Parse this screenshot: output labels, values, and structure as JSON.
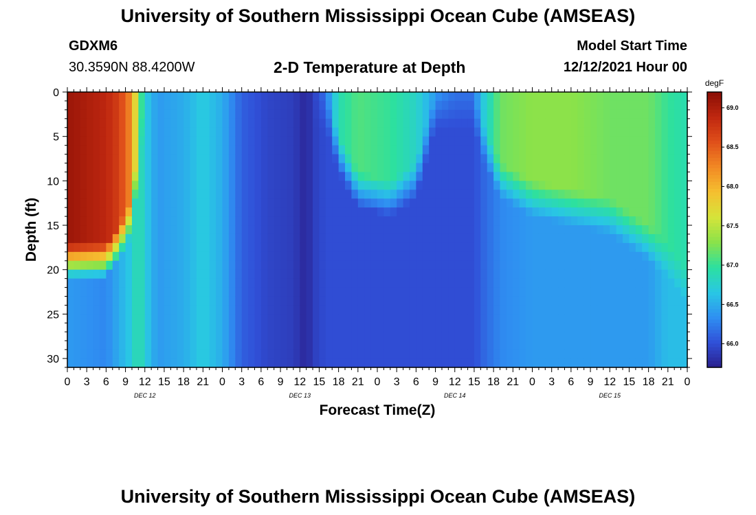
{
  "header": {
    "title": "University of Southern Mississippi Ocean Cube (AMSEAS)",
    "station_id": "GDXM6",
    "coords": "30.3590N  88.4200W",
    "subtitle": "2-D Temperature at Depth",
    "start_label": "Model Start Time",
    "start_value": "12/12/2021 Hour 00"
  },
  "footer": {
    "title": "University of Southern Mississippi Ocean Cube (AMSEAS)"
  },
  "chart_data": {
    "type": "heatmap",
    "title": "2-D Temperature at Depth",
    "xlabel": "Forecast Time(Z)",
    "ylabel": "Depth (ft)",
    "x_range_hours": [
      0,
      96
    ],
    "y_range_ft": [
      0,
      31
    ],
    "x_ticks": [
      {
        "hour": 0,
        "label": "0"
      },
      {
        "hour": 3,
        "label": "3"
      },
      {
        "hour": 6,
        "label": "6"
      },
      {
        "hour": 9,
        "label": "9"
      },
      {
        "hour": 12,
        "label": "12"
      },
      {
        "hour": 15,
        "label": "15"
      },
      {
        "hour": 18,
        "label": "18"
      },
      {
        "hour": 21,
        "label": "21"
      },
      {
        "hour": 24,
        "label": "0"
      },
      {
        "hour": 27,
        "label": "3"
      },
      {
        "hour": 30,
        "label": "6"
      },
      {
        "hour": 33,
        "label": "9"
      },
      {
        "hour": 36,
        "label": "12"
      },
      {
        "hour": 39,
        "label": "15"
      },
      {
        "hour": 42,
        "label": "18"
      },
      {
        "hour": 45,
        "label": "21"
      },
      {
        "hour": 48,
        "label": "0"
      },
      {
        "hour": 51,
        "label": "3"
      },
      {
        "hour": 54,
        "label": "6"
      },
      {
        "hour": 57,
        "label": "9"
      },
      {
        "hour": 60,
        "label": "12"
      },
      {
        "hour": 63,
        "label": "15"
      },
      {
        "hour": 66,
        "label": "18"
      },
      {
        "hour": 69,
        "label": "21"
      },
      {
        "hour": 72,
        "label": "0"
      },
      {
        "hour": 75,
        "label": "3"
      },
      {
        "hour": 78,
        "label": "6"
      },
      {
        "hour": 81,
        "label": "9"
      },
      {
        "hour": 84,
        "label": "12"
      },
      {
        "hour": 87,
        "label": "15"
      },
      {
        "hour": 90,
        "label": "18"
      },
      {
        "hour": 93,
        "label": "21"
      },
      {
        "hour": 96,
        "label": "0"
      }
    ],
    "date_labels": [
      {
        "hour": 12,
        "label": "DEC 12"
      },
      {
        "hour": 36,
        "label": "DEC 13"
      },
      {
        "hour": 60,
        "label": "DEC 14"
      },
      {
        "hour": 84,
        "label": "DEC 15"
      }
    ],
    "y_ticks": [
      0,
      5,
      10,
      15,
      20,
      25,
      30
    ],
    "colorbar": {
      "unit": "degF",
      "range": [
        65.7,
        69.2
      ],
      "ticks": [
        66.0,
        66.5,
        67.0,
        67.5,
        68.0,
        68.5,
        69.0
      ],
      "tick_labels": [
        "66.0",
        "66.5",
        "67.0",
        "67.5",
        "68.0",
        "68.5",
        "69.0"
      ],
      "colors": [
        "#2a1f8c",
        "#3050d8",
        "#2f8ff2",
        "#29c7e4",
        "#2ce0a0",
        "#8ae24a",
        "#d5e43a",
        "#f5c030",
        "#f28a24",
        "#e0501a",
        "#c02810",
        "#8a0e05"
      ]
    },
    "column_profiles_note": "Estimated temperature (degF) read from the color scale; each column is an hourly profile with depth",
    "columns": [
      {
        "hour": 0,
        "top": 69.1,
        "bottom": 66.4,
        "break": 17
      },
      {
        "hour": 6,
        "top": 68.9,
        "bottom": 66.3,
        "break": 17
      },
      {
        "hour": 8,
        "top": 68.7,
        "bottom": 66.5,
        "break": 15
      },
      {
        "hour": 10,
        "top": 68.2,
        "bottom": 66.7,
        "break": 12
      },
      {
        "hour": 11,
        "top": 67.3,
        "bottom": 67.0,
        "break": 5
      },
      {
        "hour": 12,
        "top": 66.7,
        "bottom": 66.7,
        "break": 0
      },
      {
        "hour": 14,
        "top": 66.4,
        "bottom": 66.4,
        "break": 0
      },
      {
        "hour": 18,
        "top": 66.5,
        "bottom": 66.5,
        "break": 0
      },
      {
        "hour": 21,
        "top": 66.7,
        "bottom": 66.7,
        "break": 0
      },
      {
        "hour": 24,
        "top": 66.5,
        "bottom": 66.5,
        "break": 0
      },
      {
        "hour": 27,
        "top": 66.1,
        "bottom": 66.1,
        "break": 0
      },
      {
        "hour": 31,
        "top": 65.95,
        "bottom": 65.95,
        "break": 0
      },
      {
        "hour": 35,
        "top": 65.9,
        "bottom": 65.9,
        "break": 0
      },
      {
        "hour": 37,
        "top": 65.75,
        "bottom": 65.75,
        "break": 0
      },
      {
        "hour": 38,
        "top": 65.9,
        "bottom": 65.9,
        "break": 0
      },
      {
        "hour": 40,
        "top": 66.2,
        "bottom": 66.0,
        "break": 0
      },
      {
        "hour": 42,
        "top": 66.9,
        "bottom": 66.0,
        "break": 5
      },
      {
        "hour": 45,
        "top": 67.1,
        "bottom": 66.0,
        "break": 9
      },
      {
        "hour": 50,
        "top": 67.0,
        "bottom": 66.0,
        "break": 10
      },
      {
        "hour": 54,
        "top": 66.8,
        "bottom": 66.0,
        "break": 8
      },
      {
        "hour": 57,
        "top": 66.4,
        "bottom": 66.0,
        "break": 0
      },
      {
        "hour": 60,
        "top": 66.2,
        "bottom": 66.0,
        "break": 0
      },
      {
        "hour": 63,
        "top": 66.2,
        "bottom": 66.0,
        "break": 0
      },
      {
        "hour": 64,
        "top": 66.6,
        "bottom": 66.1,
        "break": 3
      },
      {
        "hour": 67,
        "top": 67.2,
        "bottom": 66.3,
        "break": 8
      },
      {
        "hour": 72,
        "top": 67.3,
        "bottom": 66.4,
        "break": 10
      },
      {
        "hour": 78,
        "top": 67.3,
        "bottom": 66.4,
        "break": 11
      },
      {
        "hour": 84,
        "top": 67.2,
        "bottom": 66.4,
        "break": 12
      },
      {
        "hour": 90,
        "top": 67.2,
        "bottom": 66.4,
        "break": 15
      },
      {
        "hour": 93,
        "top": 67.0,
        "bottom": 66.6,
        "break": 17
      },
      {
        "hour": 96,
        "top": 66.9,
        "bottom": 66.6,
        "break": 20
      }
    ]
  }
}
